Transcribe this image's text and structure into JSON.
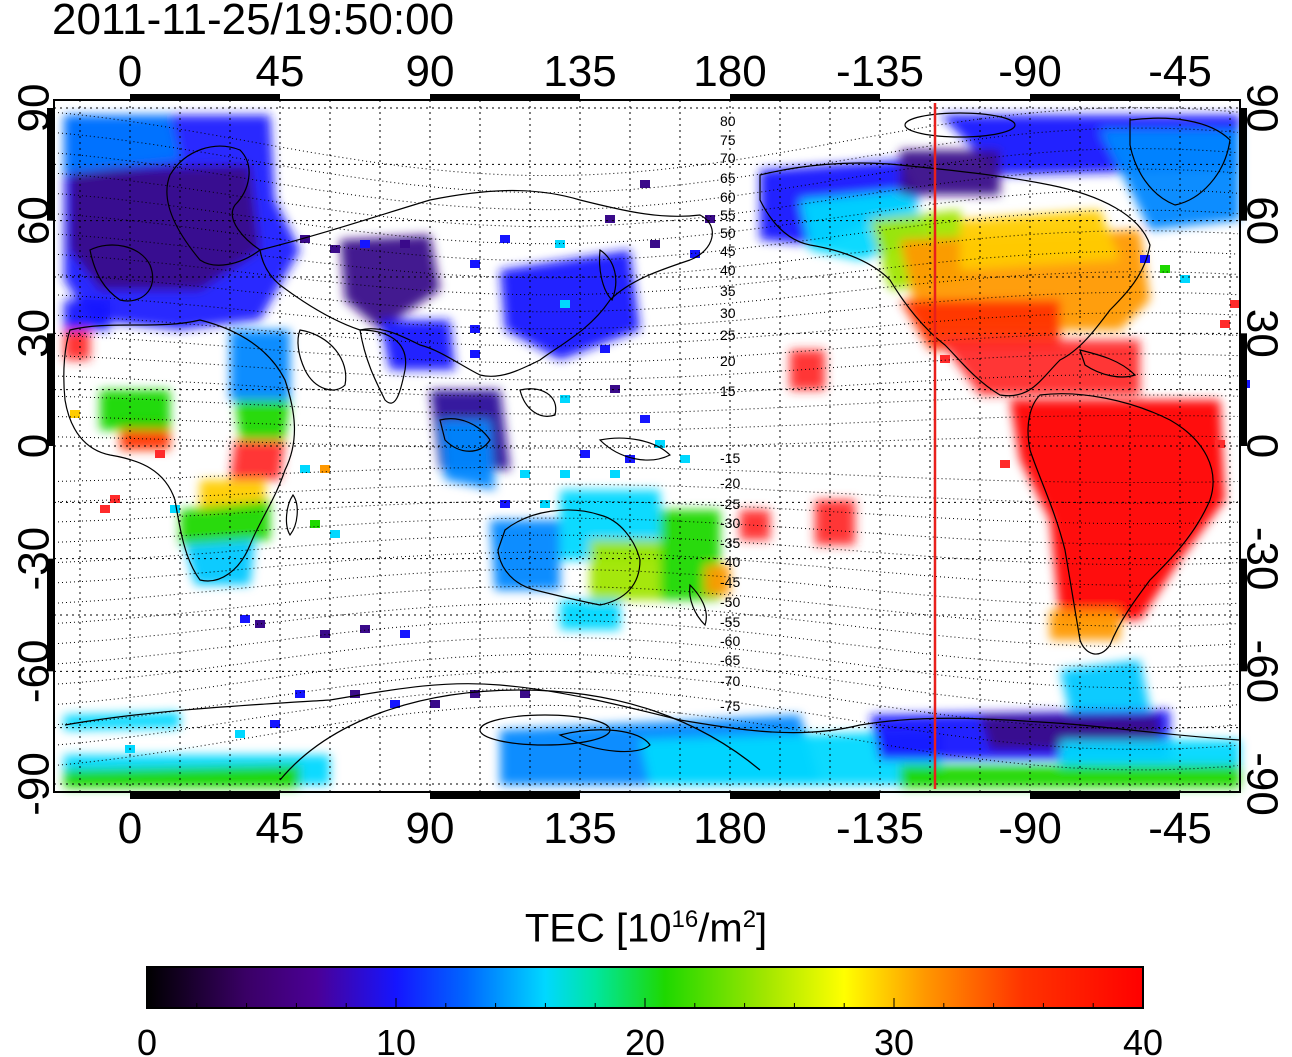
{
  "timestamp": "2011-11-25/19:50:00",
  "map": {
    "top_lon_ticks": [
      "0",
      "45",
      "90",
      "135",
      "180",
      "-135",
      "-90",
      "-45"
    ],
    "bottom_lon_ticks": [
      "0",
      "45",
      "90",
      "135",
      "180",
      "-135",
      "-90",
      "-45"
    ],
    "lat_ticks": [
      "90",
      "60",
      "30",
      "0",
      "-30",
      "-60",
      "-90"
    ],
    "magnetic_latitude_labels": [
      "80",
      "75",
      "70",
      "65",
      "60",
      "55",
      "50",
      "45",
      "40",
      "35",
      "30",
      "25",
      "20",
      "15",
      "-15",
      "-20",
      "-25",
      "-30",
      "-35",
      "-40",
      "-45",
      "-50",
      "-55",
      "-60",
      "-65",
      "-70",
      "-75"
    ],
    "terminator_longitude": -118,
    "terminator_color": "#e8201c",
    "grid": "dotted"
  },
  "colorbar": {
    "title_prefix": "TEC  [10",
    "title_exp1": "16",
    "title_mid": "/m",
    "title_exp2": "2",
    "title_suffix": "]",
    "min": 0,
    "max": 40,
    "tick_labels": [
      "0",
      "10",
      "20",
      "30",
      "40"
    ],
    "colors": [
      "#000000",
      "#3a0066",
      "#4b0096",
      "#1515ff",
      "#0066ff",
      "#00d8ff",
      "#00e6a0",
      "#1ed800",
      "#a0e600",
      "#ffff00",
      "#ff9900",
      "#ff3300",
      "#ff0000"
    ]
  }
}
